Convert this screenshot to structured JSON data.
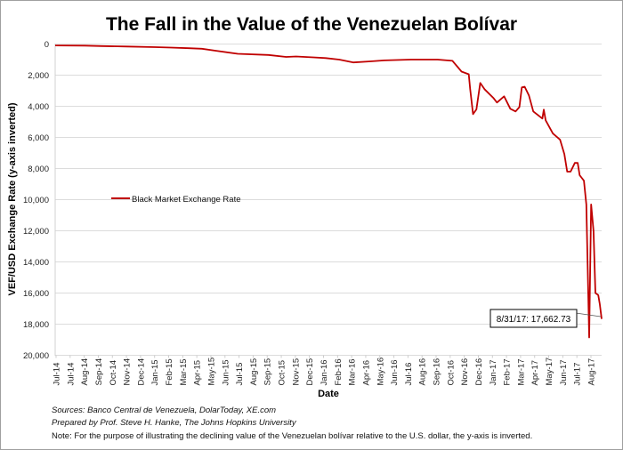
{
  "chart_data": {
    "type": "line",
    "title": "The Fall in the Value of the Venezuelan Bolívar",
    "xlabel": "Date",
    "ylabel": "VEF/USD Exchange Rate (y-axis inverted)",
    "y_inverted": true,
    "ylim": [
      0,
      20000
    ],
    "yticks": [
      "0",
      "2,000",
      "4,000",
      "6,000",
      "8,000",
      "10,000",
      "12,000",
      "14,000",
      "16,000",
      "18,000",
      "20,000"
    ],
    "xlim": [
      "2014-07-15",
      "2017-08-31"
    ],
    "xtick_labels": [
      "Jul-14",
      "Jul-14",
      "Aug-14",
      "Sep-14",
      "Oct-14",
      "Nov-14",
      "Dec-14",
      "Jan-15",
      "Feb-15",
      "Mar-15",
      "Apr-15",
      "May-15",
      "Jun-15",
      "Jul-15",
      "Aug-15",
      "Sep-15",
      "Oct-15",
      "Nov-15",
      "Dec-15",
      "Jan-16",
      "Feb-16",
      "Mar-16",
      "Apr-16",
      "May-16",
      "Jun-16",
      "Jul-16",
      "Aug-16",
      "Sep-16",
      "Oct-16",
      "Nov-16",
      "Dec-16",
      "Jan-17",
      "Feb-17",
      "Mar-17",
      "Apr-17",
      "May-17",
      "Jun-17",
      "Jul-17",
      "Aug-17"
    ],
    "grid": true,
    "legend_position": "middle-left",
    "series": [
      {
        "name": "Black Market Exchange Rate",
        "color": "#c00000",
        "points": [
          [
            "2014-07-15",
            90
          ],
          [
            "2014-09-15",
            100
          ],
          [
            "2014-10-20",
            130
          ],
          [
            "2014-12-12",
            160
          ],
          [
            "2015-02-10",
            200
          ],
          [
            "2015-03-14",
            230
          ],
          [
            "2015-04-20",
            270
          ],
          [
            "2015-05-18",
            300
          ],
          [
            "2015-06-15",
            430
          ],
          [
            "2015-08-01",
            630
          ],
          [
            "2015-10-04",
            700
          ],
          [
            "2015-11-10",
            830
          ],
          [
            "2015-12-01",
            800
          ],
          [
            "2016-01-06",
            860
          ],
          [
            "2016-02-01",
            900
          ],
          [
            "2016-02-29",
            1000
          ],
          [
            "2016-03-30",
            1180
          ],
          [
            "2016-05-01",
            1120
          ],
          [
            "2016-06-03",
            1050
          ],
          [
            "2016-07-28",
            1000
          ],
          [
            "2016-09-22",
            1000
          ],
          [
            "2016-10-23",
            1080
          ],
          [
            "2016-11-11",
            1770
          ],
          [
            "2016-11-26",
            1940
          ],
          [
            "2016-11-29",
            2900
          ],
          [
            "2016-12-05",
            4500
          ],
          [
            "2016-12-12",
            4200
          ],
          [
            "2016-12-20",
            2500
          ],
          [
            "2016-12-29",
            2900
          ],
          [
            "2017-01-17",
            3480
          ],
          [
            "2017-01-24",
            3760
          ],
          [
            "2017-02-08",
            3360
          ],
          [
            "2017-02-21",
            4160
          ],
          [
            "2017-03-04",
            4330
          ],
          [
            "2017-03-12",
            4050
          ],
          [
            "2017-03-17",
            2790
          ],
          [
            "2017-03-23",
            2740
          ],
          [
            "2017-04-01",
            3300
          ],
          [
            "2017-04-10",
            4330
          ],
          [
            "2017-04-29",
            4790
          ],
          [
            "2017-05-02",
            4220
          ],
          [
            "2017-05-06",
            4900
          ],
          [
            "2017-05-21",
            5750
          ],
          [
            "2017-06-05",
            6150
          ],
          [
            "2017-06-14",
            7070
          ],
          [
            "2017-06-20",
            8200
          ],
          [
            "2017-06-27",
            8200
          ],
          [
            "2017-07-06",
            7640
          ],
          [
            "2017-07-12",
            7640
          ],
          [
            "2017-07-16",
            8430
          ],
          [
            "2017-07-25",
            8780
          ],
          [
            "2017-07-30",
            10310
          ],
          [
            "2017-08-05",
            18860
          ],
          [
            "2017-08-09",
            10310
          ],
          [
            "2017-08-14",
            12020
          ],
          [
            "2017-08-18",
            16000
          ],
          [
            "2017-08-24",
            16130
          ],
          [
            "2017-08-27",
            16700
          ],
          [
            "2017-08-31",
            17662.73
          ]
        ]
      }
    ],
    "annotation": "8/31/17: 17,662.73",
    "footnotes": {
      "sources": "Sources: Banco Central de Venezuela, DolarToday, XE.com",
      "prepared": "Prepared by Prof. Steve H. Hanke, The Johns Hopkins University",
      "note": "Note: For the purpose of illustrating the declining value of the Venezuelan bolívar relative to the U.S. dollar, the y-axis is inverted."
    }
  }
}
